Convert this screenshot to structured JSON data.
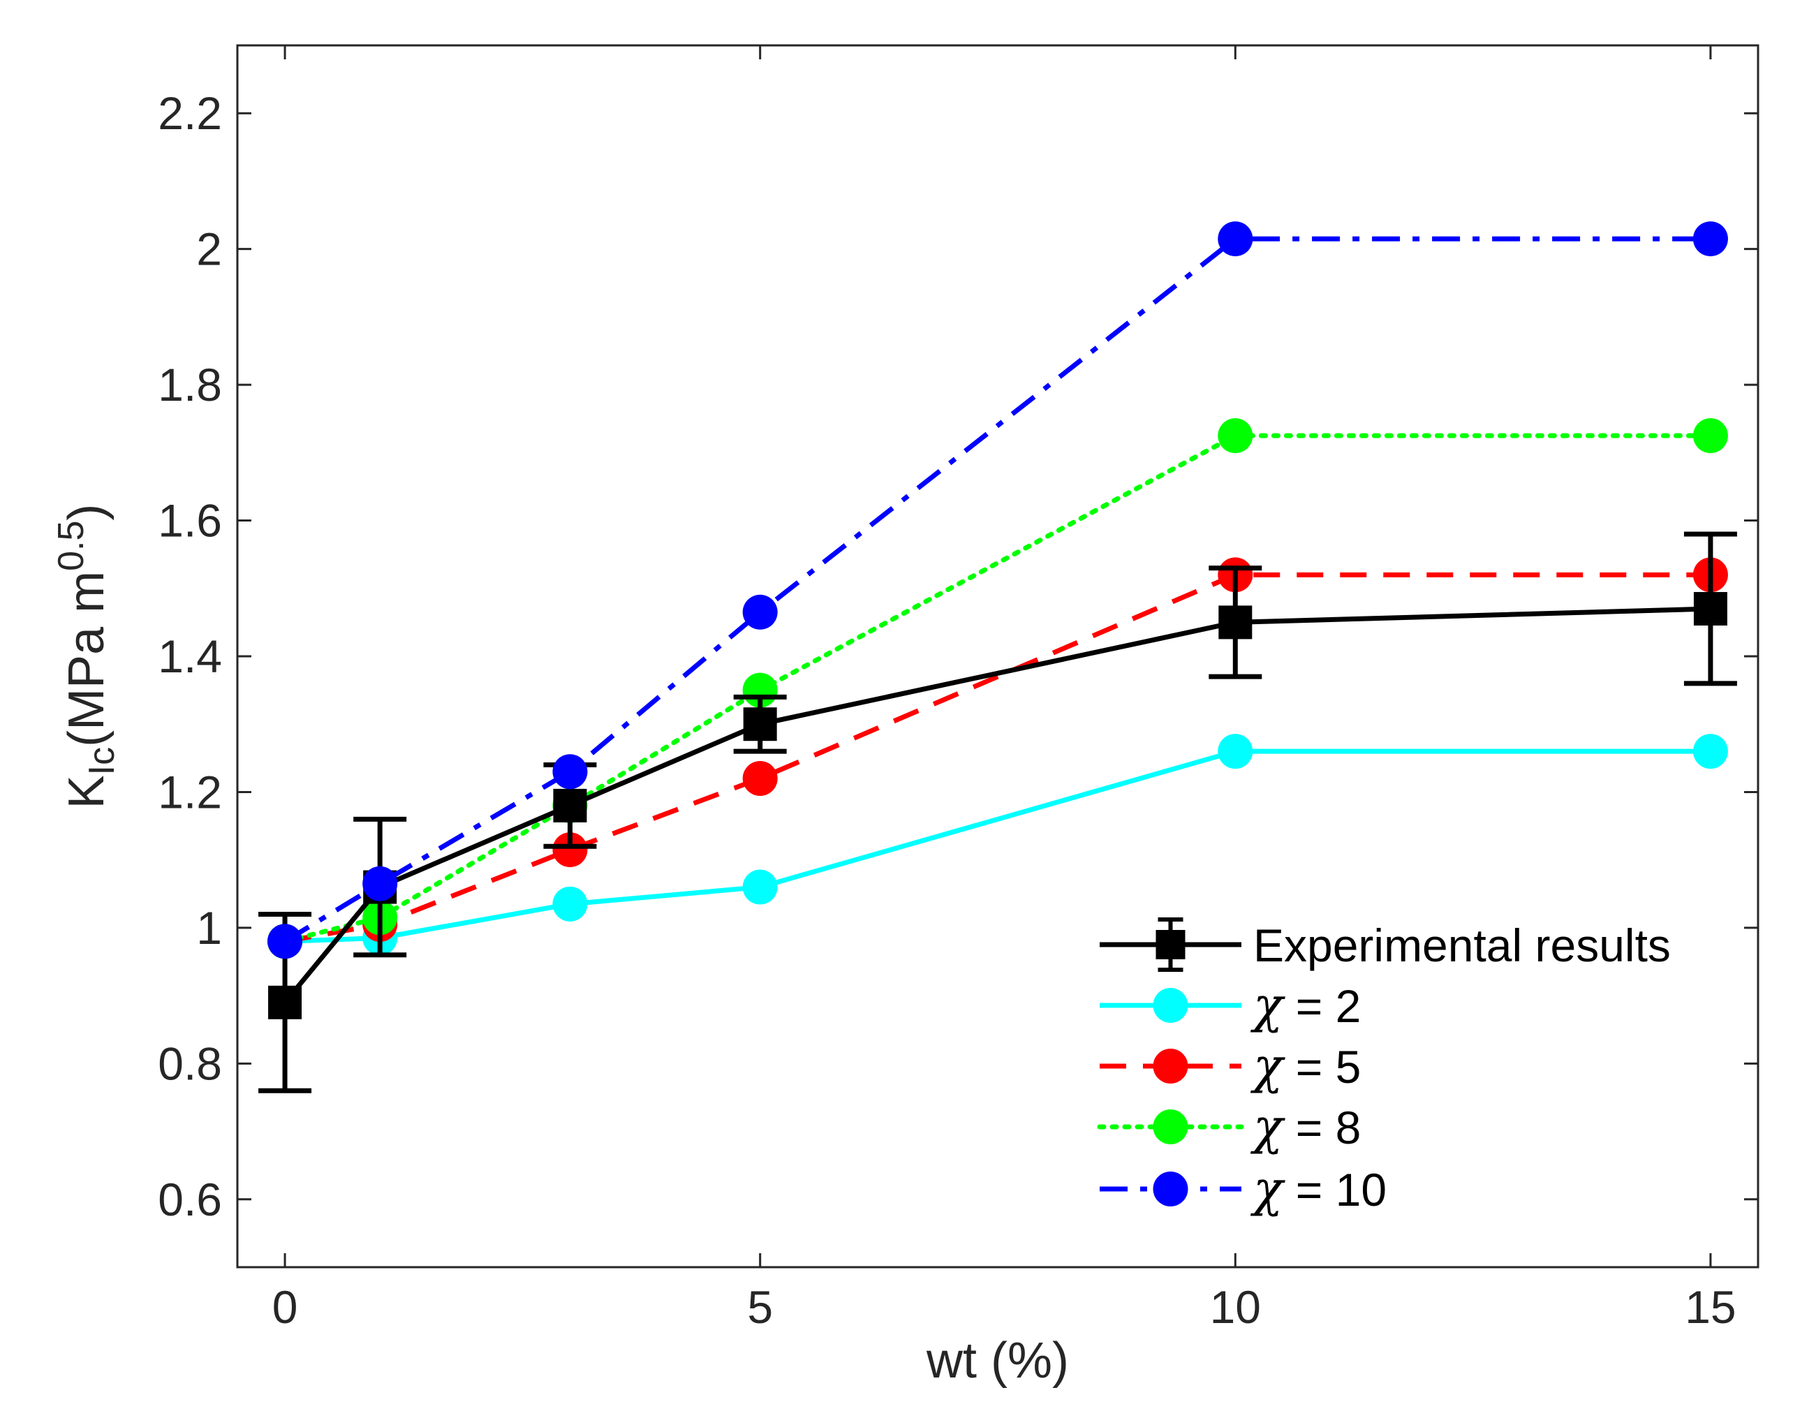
{
  "chart_data": {
    "type": "line",
    "title": "",
    "xlabel": "wt (%)",
    "ylabel": {
      "main": "K",
      "subscript": "Ic",
      "unit_open": "(MPa m",
      "unit_superscript": "0.5",
      "unit_close": ")"
    },
    "xlim": [
      -0.5,
      15.5
    ],
    "ylim": [
      0.5,
      2.3
    ],
    "xticks": [
      0,
      5,
      10,
      15
    ],
    "xtick_labels": [
      "0",
      "5",
      "10",
      "15"
    ],
    "yticks": [
      0.6,
      0.8,
      1,
      1.2,
      1.4,
      1.6,
      1.8,
      2,
      2.2
    ],
    "ytick_labels": [
      "0.6",
      "0.8",
      "1",
      "1.2",
      "1.4",
      "1.6",
      "1.8",
      "2",
      "2.2"
    ],
    "grid": false,
    "legend_position": "bottom-right",
    "x": [
      0,
      1,
      3,
      5,
      10,
      15
    ],
    "series": [
      {
        "name": "Experimental results",
        "legend_symbol": "",
        "legend_value": "Experimental results",
        "color": "#000000",
        "line_style": "solid",
        "marker": "square",
        "values": [
          0.89,
          1.06,
          1.18,
          1.3,
          1.45,
          1.47
        ],
        "error_low": [
          0.76,
          0.96,
          1.12,
          1.26,
          1.37,
          1.36
        ],
        "error_high": [
          1.02,
          1.16,
          1.24,
          1.34,
          1.53,
          1.58
        ]
      },
      {
        "name": "χ = 2",
        "legend_symbol": "χ",
        "legend_value": " = 2",
        "color": "#00ffff",
        "line_style": "solid",
        "marker": "circle",
        "values": [
          0.98,
          0.985,
          1.035,
          1.06,
          1.26,
          1.26
        ]
      },
      {
        "name": "χ = 5",
        "legend_symbol": "χ",
        "legend_value": " = 5",
        "color": "#ff0000",
        "line_style": "dashed",
        "marker": "circle",
        "values": [
          0.98,
          1.005,
          1.115,
          1.22,
          1.52,
          1.52
        ]
      },
      {
        "name": "χ = 8",
        "legend_symbol": "χ",
        "legend_value": " = 8",
        "color": "#00ff00",
        "line_style": "dotted",
        "marker": "circle",
        "values": [
          0.98,
          1.015,
          1.18,
          1.35,
          1.725,
          1.725
        ]
      },
      {
        "name": "χ = 10",
        "legend_symbol": "χ",
        "legend_value": " = 10",
        "color": "#0000ff",
        "line_style": "dashdot",
        "marker": "circle",
        "values": [
          0.98,
          1.065,
          1.23,
          1.465,
          2.015,
          2.015
        ]
      }
    ]
  }
}
